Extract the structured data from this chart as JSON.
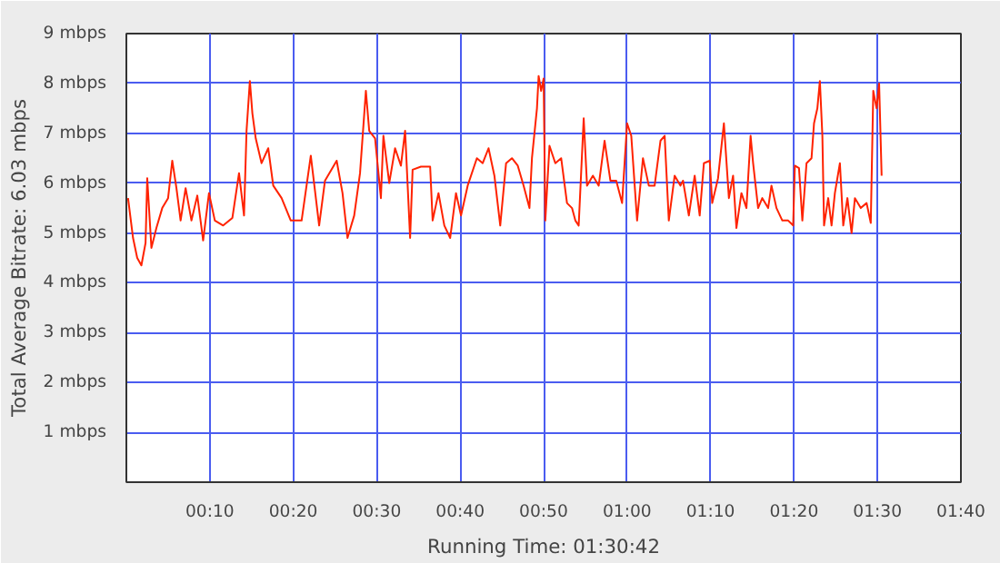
{
  "chart_data": {
    "type": "line",
    "xlabel": "Running Time: 01:30:42",
    "ylabel": "Total Average Bitrate: 6.03 mbps",
    "xlim": [
      0,
      100
    ],
    "ylim": [
      0,
      9
    ],
    "xticks": [
      {
        "value": 10,
        "label": "00:10"
      },
      {
        "value": 20,
        "label": "00:20"
      },
      {
        "value": 30,
        "label": "00:30"
      },
      {
        "value": 40,
        "label": "00:40"
      },
      {
        "value": 50,
        "label": "00:50"
      },
      {
        "value": 60,
        "label": "01:00"
      },
      {
        "value": 70,
        "label": "01:10"
      },
      {
        "value": 80,
        "label": "01:20"
      },
      {
        "value": 90,
        "label": "01:30"
      },
      {
        "value": 100,
        "label": "01:40"
      }
    ],
    "yticks": [
      {
        "value": 1,
        "label": "1 mbps"
      },
      {
        "value": 2,
        "label": "2 mbps"
      },
      {
        "value": 3,
        "label": "3 mbps"
      },
      {
        "value": 4,
        "label": "4 mbps"
      },
      {
        "value": 5,
        "label": "5 mbps"
      },
      {
        "value": 6,
        "label": "6 mbps"
      },
      {
        "value": 7,
        "label": "7 mbps"
      },
      {
        "value": 8,
        "label": "8 mbps"
      },
      {
        "value": 9,
        "label": "9 mbps"
      }
    ],
    "grid": true,
    "marker": "none",
    "line_style": "solid",
    "series": [
      {
        "color": "#ff2200",
        "x": [
          0.2,
          0.8,
          1.3,
          1.8,
          2.3,
          2.5,
          3.0,
          3.6,
          4.3,
          5.0,
          5.5,
          6.0,
          6.5,
          7.1,
          7.8,
          8.5,
          9.2,
          9.9,
          10.6,
          11.6,
          12.7,
          13.5,
          14.1,
          14.4,
          14.8,
          15.1,
          15.5,
          16.2,
          17.0,
          17.6,
          18.6,
          19.7,
          21.0,
          22.1,
          23.1,
          23.8,
          25.2,
          25.9,
          26.5,
          27.3,
          28.0,
          28.7,
          29.1,
          29.8,
          30.5,
          30.8,
          31.5,
          32.2,
          32.9,
          33.4,
          34.0,
          34.3,
          35.3,
          36.4,
          36.7,
          37.4,
          38.1,
          38.8,
          39.5,
          40.1,
          40.9,
          42.0,
          42.7,
          43.4,
          44.1,
          44.8,
          45.5,
          46.2,
          46.9,
          47.6,
          48.3,
          48.6,
          49.2,
          49.4,
          49.7,
          50.0,
          50.2,
          50.7,
          51.4,
          52.1,
          52.8,
          53.4,
          53.8,
          54.2,
          54.8,
          55.2,
          55.9,
          56.6,
          57.3,
          58.0,
          58.7,
          59.4,
          60.0,
          60.5,
          61.2,
          61.9,
          62.6,
          63.3,
          64.0,
          64.5,
          65.0,
          65.7,
          66.4,
          66.7,
          67.4,
          68.1,
          68.7,
          69.2,
          69.9,
          70.2,
          70.9,
          71.6,
          72.2,
          72.7,
          73.1,
          73.7,
          74.3,
          74.8,
          75.1,
          75.7,
          76.2,
          76.9,
          77.3,
          77.9,
          78.6,
          79.3,
          79.9,
          80.1,
          80.6,
          81.0,
          81.5,
          82.1,
          82.4,
          82.8,
          83.1,
          83.4,
          83.6,
          84.1,
          84.5,
          84.9,
          85.5,
          85.9,
          86.4,
          86.9,
          87.3,
          88.0,
          88.7,
          89.2,
          89.5,
          89.9,
          90.2,
          90.5
        ],
        "values": [
          5.7,
          4.9,
          4.5,
          4.35,
          4.8,
          6.1,
          4.7,
          5.1,
          5.5,
          5.7,
          6.45,
          5.9,
          5.25,
          5.9,
          5.25,
          5.75,
          4.85,
          5.8,
          5.25,
          5.15,
          5.3,
          6.2,
          5.35,
          7.05,
          8.05,
          7.4,
          6.9,
          6.4,
          6.7,
          5.95,
          5.7,
          5.25,
          5.25,
          6.55,
          5.15,
          6.05,
          6.45,
          5.8,
          4.9,
          5.35,
          6.2,
          7.85,
          7.05,
          6.9,
          5.7,
          6.95,
          6.0,
          6.7,
          6.35,
          7.05,
          4.9,
          6.27,
          6.33,
          6.33,
          5.25,
          5.8,
          5.15,
          4.9,
          5.8,
          5.35,
          5.95,
          6.5,
          6.4,
          6.7,
          6.15,
          5.15,
          6.4,
          6.5,
          6.35,
          5.95,
          5.5,
          6.5,
          7.5,
          8.15,
          7.85,
          8.1,
          5.25,
          6.75,
          6.4,
          6.5,
          5.6,
          5.5,
          5.25,
          5.15,
          7.3,
          5.95,
          6.15,
          5.95,
          6.85,
          6.05,
          6.05,
          5.6,
          7.2,
          6.95,
          5.25,
          6.5,
          5.95,
          5.95,
          6.85,
          6.95,
          5.25,
          6.15,
          5.95,
          6.05,
          5.35,
          6.15,
          5.35,
          6.4,
          6.45,
          5.6,
          6.1,
          7.2,
          5.7,
          6.15,
          5.1,
          5.8,
          5.5,
          6.95,
          6.4,
          5.5,
          5.7,
          5.5,
          5.95,
          5.5,
          5.25,
          5.25,
          5.15,
          6.35,
          6.3,
          5.25,
          6.4,
          6.5,
          7.2,
          7.5,
          8.05,
          6.95,
          5.15,
          5.7,
          5.15,
          5.8,
          6.4,
          5.15,
          5.7,
          5.0,
          5.7,
          5.5,
          5.6,
          5.2,
          7.85,
          7.5,
          8.0,
          6.15
        ]
      }
    ]
  }
}
